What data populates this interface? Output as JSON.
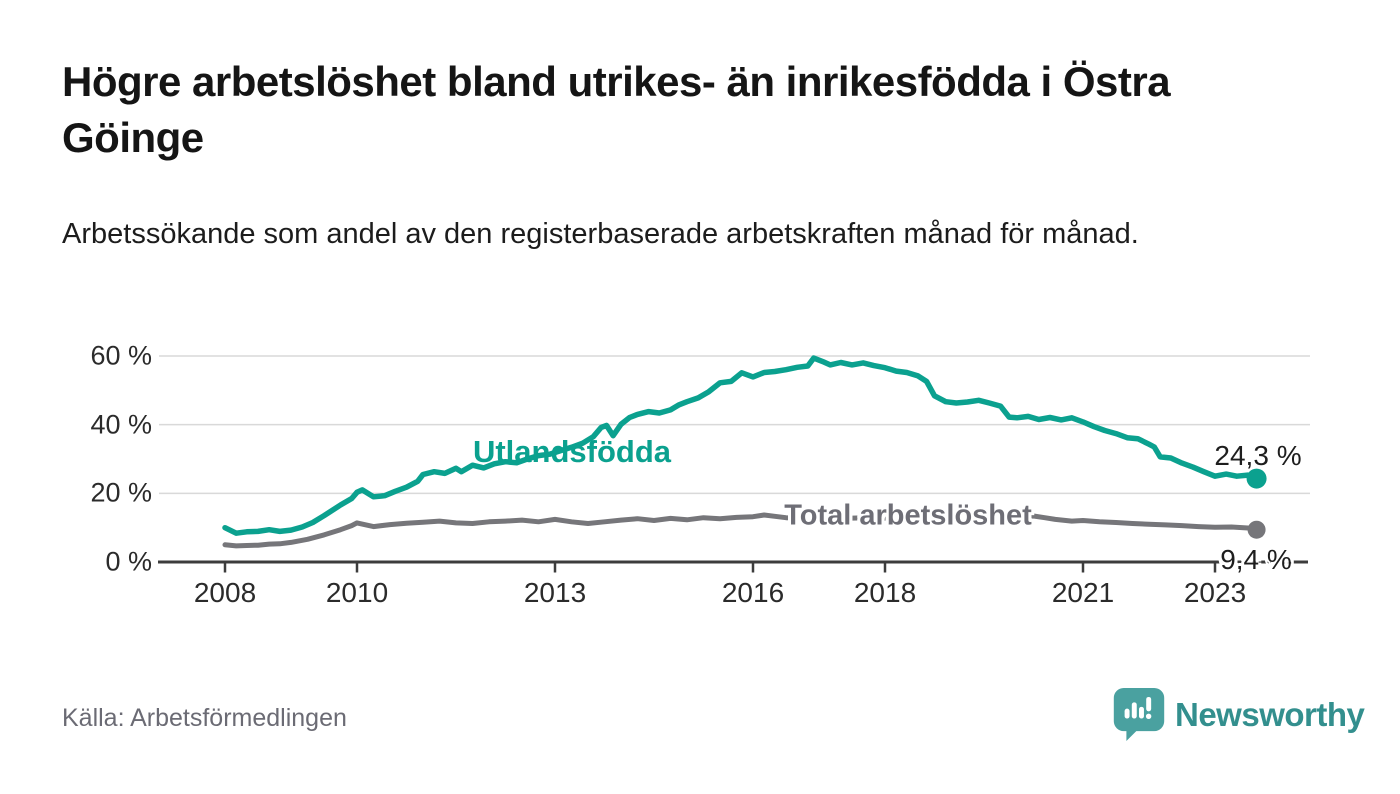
{
  "header": {
    "title": "Högre arbetslöshet bland utrikes- än inrikesfödda i Östra Göinge",
    "subtitle": "Arbetssökande som andel av den registerbaserade arbetskraften månad för månad."
  },
  "footer": {
    "source": "Källa: Arbetsförmedlingen",
    "brand": "Newsworthy",
    "logo_icon": "speech-bubble-bar-chart-icon"
  },
  "colors": {
    "series_utlandsfodda": "#0ba18f",
    "series_total": "#76767a",
    "total_label_text": "#6e6e76",
    "grid": "#d9d9d9",
    "axis": "#3c3c3c",
    "text_dark": "#1e1e1e",
    "text_muted": "#6b6b74",
    "brand_teal": "#338f8e",
    "logo_bubble": "#4aa1a0"
  },
  "chart_data": {
    "type": "line",
    "title": "",
    "xlabel": "",
    "ylabel": "",
    "grid": "horizontal",
    "xticks": [
      2008,
      2010,
      2013,
      2016,
      2018,
      2021,
      2023
    ],
    "ytick_values": [
      0,
      20,
      40,
      60
    ],
    "ytick_labels": [
      "0 %",
      "20 %",
      "40 %",
      "60 %"
    ],
    "xlim": [
      2007.0,
      2024.4
    ],
    "ylim": [
      0,
      62
    ],
    "series": [
      {
        "name": "Utlandsfödda",
        "color": "#0ba18f",
        "end_label": "24,3 %",
        "end_value": 24.3,
        "points": [
          [
            2008.0,
            10.0
          ],
          [
            2008.17,
            8.4
          ],
          [
            2008.33,
            8.8
          ],
          [
            2008.5,
            8.9
          ],
          [
            2008.67,
            9.4
          ],
          [
            2008.83,
            8.9
          ],
          [
            2009.0,
            9.3
          ],
          [
            2009.17,
            10.2
          ],
          [
            2009.33,
            11.5
          ],
          [
            2009.5,
            13.5
          ],
          [
            2009.75,
            16.6
          ],
          [
            2009.92,
            18.5
          ],
          [
            2010.0,
            20.3
          ],
          [
            2010.08,
            21.0
          ],
          [
            2010.25,
            19.0
          ],
          [
            2010.42,
            19.3
          ],
          [
            2010.58,
            20.6
          ],
          [
            2010.75,
            21.8
          ],
          [
            2010.92,
            23.5
          ],
          [
            2011.0,
            25.5
          ],
          [
            2011.17,
            26.3
          ],
          [
            2011.33,
            25.8
          ],
          [
            2011.5,
            27.3
          ],
          [
            2011.58,
            26.3
          ],
          [
            2011.75,
            28.2
          ],
          [
            2011.92,
            27.4
          ],
          [
            2012.08,
            28.6
          ],
          [
            2012.25,
            29.2
          ],
          [
            2012.42,
            28.9
          ],
          [
            2012.58,
            30.0
          ],
          [
            2012.75,
            31.0
          ],
          [
            2012.92,
            31.4
          ],
          [
            2013.08,
            32.4
          ],
          [
            2013.25,
            33.4
          ],
          [
            2013.42,
            34.6
          ],
          [
            2013.58,
            36.5
          ],
          [
            2013.7,
            39.2
          ],
          [
            2013.78,
            39.8
          ],
          [
            2013.88,
            36.8
          ],
          [
            2014.0,
            40.1
          ],
          [
            2014.13,
            42.1
          ],
          [
            2014.25,
            43.0
          ],
          [
            2014.42,
            43.8
          ],
          [
            2014.58,
            43.4
          ],
          [
            2014.75,
            44.3
          ],
          [
            2014.88,
            45.8
          ],
          [
            2015.0,
            46.7
          ],
          [
            2015.17,
            47.8
          ],
          [
            2015.33,
            49.6
          ],
          [
            2015.5,
            52.2
          ],
          [
            2015.67,
            52.6
          ],
          [
            2015.83,
            55.1
          ],
          [
            2016.0,
            53.9
          ],
          [
            2016.17,
            55.2
          ],
          [
            2016.33,
            55.5
          ],
          [
            2016.5,
            56.0
          ],
          [
            2016.67,
            56.7
          ],
          [
            2016.83,
            57.1
          ],
          [
            2016.92,
            59.4
          ],
          [
            2017.08,
            58.2
          ],
          [
            2017.17,
            57.4
          ],
          [
            2017.33,
            58.1
          ],
          [
            2017.5,
            57.4
          ],
          [
            2017.67,
            58.0
          ],
          [
            2017.83,
            57.2
          ],
          [
            2018.0,
            56.6
          ],
          [
            2018.17,
            55.6
          ],
          [
            2018.33,
            55.2
          ],
          [
            2018.5,
            54.2
          ],
          [
            2018.63,
            52.6
          ],
          [
            2018.75,
            48.4
          ],
          [
            2018.92,
            46.7
          ],
          [
            2019.08,
            46.3
          ],
          [
            2019.25,
            46.6
          ],
          [
            2019.42,
            47.1
          ],
          [
            2019.58,
            46.3
          ],
          [
            2019.75,
            45.4
          ],
          [
            2019.88,
            42.2
          ],
          [
            2020.0,
            42.0
          ],
          [
            2020.17,
            42.4
          ],
          [
            2020.33,
            41.5
          ],
          [
            2020.5,
            42.1
          ],
          [
            2020.67,
            41.4
          ],
          [
            2020.83,
            42.0
          ],
          [
            2021.0,
            40.8
          ],
          [
            2021.17,
            39.4
          ],
          [
            2021.33,
            38.3
          ],
          [
            2021.5,
            37.4
          ],
          [
            2021.67,
            36.2
          ],
          [
            2021.83,
            35.9
          ],
          [
            2022.0,
            34.3
          ],
          [
            2022.08,
            33.5
          ],
          [
            2022.17,
            30.6
          ],
          [
            2022.33,
            30.3
          ],
          [
            2022.5,
            28.8
          ],
          [
            2022.67,
            27.6
          ],
          [
            2022.83,
            26.3
          ],
          [
            2023.0,
            25.0
          ],
          [
            2023.17,
            25.6
          ],
          [
            2023.33,
            25.0
          ],
          [
            2023.5,
            25.3
          ],
          [
            2023.63,
            24.3
          ]
        ]
      },
      {
        "name": "Total arbetslöshet",
        "color": "#76767a",
        "end_label": "9,4 %",
        "end_value": 9.4,
        "points": [
          [
            2008.0,
            5.0
          ],
          [
            2008.17,
            4.7
          ],
          [
            2008.33,
            4.8
          ],
          [
            2008.5,
            4.9
          ],
          [
            2008.67,
            5.2
          ],
          [
            2008.83,
            5.3
          ],
          [
            2009.0,
            5.7
          ],
          [
            2009.25,
            6.6
          ],
          [
            2009.5,
            7.9
          ],
          [
            2009.75,
            9.4
          ],
          [
            2009.92,
            10.6
          ],
          [
            2010.0,
            11.4
          ],
          [
            2010.25,
            10.3
          ],
          [
            2010.5,
            10.9
          ],
          [
            2010.75,
            11.3
          ],
          [
            2011.0,
            11.6
          ],
          [
            2011.25,
            11.9
          ],
          [
            2011.5,
            11.4
          ],
          [
            2011.75,
            11.2
          ],
          [
            2012.0,
            11.7
          ],
          [
            2012.25,
            11.9
          ],
          [
            2012.5,
            12.2
          ],
          [
            2012.75,
            11.7
          ],
          [
            2013.0,
            12.4
          ],
          [
            2013.25,
            11.7
          ],
          [
            2013.5,
            11.2
          ],
          [
            2013.75,
            11.7
          ],
          [
            2014.0,
            12.2
          ],
          [
            2014.25,
            12.6
          ],
          [
            2014.5,
            12.1
          ],
          [
            2014.75,
            12.7
          ],
          [
            2015.0,
            12.3
          ],
          [
            2015.25,
            12.9
          ],
          [
            2015.5,
            12.6
          ],
          [
            2015.75,
            13.0
          ],
          [
            2016.0,
            13.2
          ],
          [
            2016.17,
            13.7
          ],
          [
            2016.33,
            13.3
          ],
          [
            2016.5,
            12.9
          ],
          [
            2016.75,
            12.8
          ],
          [
            2017.0,
            12.9
          ],
          [
            2017.25,
            13.1
          ],
          [
            2017.5,
            12.8
          ],
          [
            2017.75,
            12.9
          ],
          [
            2018.0,
            12.8
          ],
          [
            2018.25,
            13.0
          ],
          [
            2018.5,
            12.8
          ],
          [
            2018.75,
            12.6
          ],
          [
            2019.0,
            12.9
          ],
          [
            2019.25,
            13.0
          ],
          [
            2019.5,
            13.2
          ],
          [
            2019.75,
            13.3
          ],
          [
            2020.0,
            13.1
          ],
          [
            2020.25,
            13.4
          ],
          [
            2020.42,
            12.9
          ],
          [
            2020.58,
            12.4
          ],
          [
            2020.83,
            11.9
          ],
          [
            2021.0,
            12.1
          ],
          [
            2021.25,
            11.7
          ],
          [
            2021.5,
            11.5
          ],
          [
            2021.75,
            11.2
          ],
          [
            2022.0,
            11.0
          ],
          [
            2022.25,
            10.8
          ],
          [
            2022.5,
            10.6
          ],
          [
            2022.75,
            10.3
          ],
          [
            2023.0,
            10.1
          ],
          [
            2023.25,
            10.2
          ],
          [
            2023.5,
            9.9
          ],
          [
            2023.63,
            9.4
          ]
        ]
      }
    ]
  }
}
